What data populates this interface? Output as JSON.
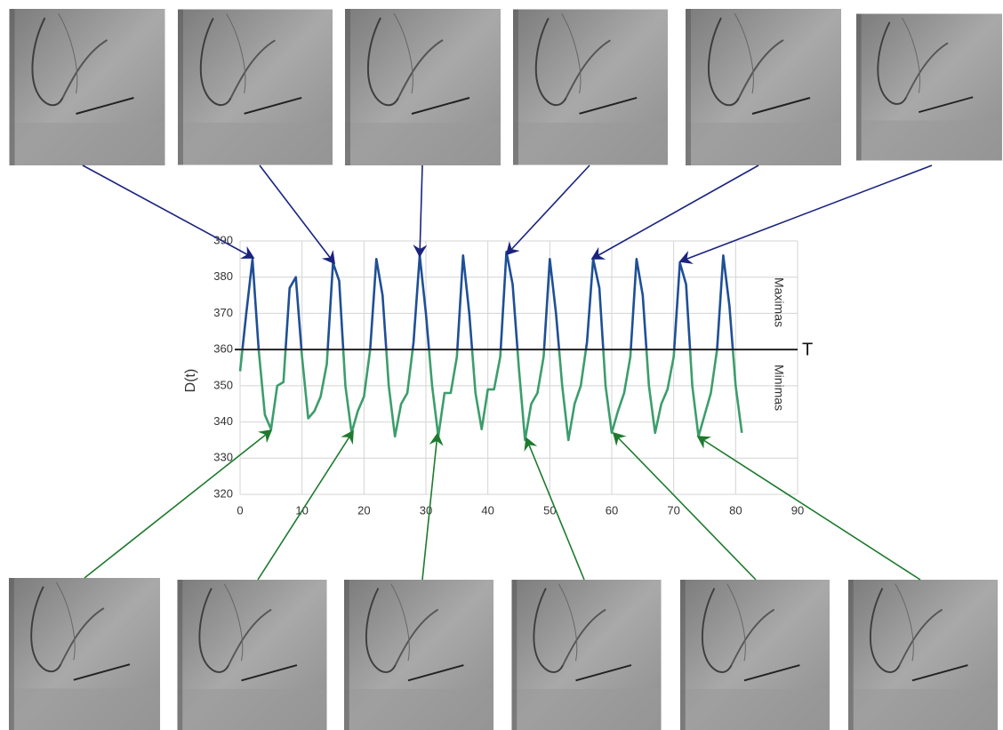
{
  "chart_data": {
    "type": "line",
    "y_label": "D(t)",
    "upper_label": "Maximas",
    "lower_label": "Minimas",
    "threshold": 360,
    "threshold_label": "T",
    "color_above": "#1f4f96",
    "color_below": "#3c9d6c",
    "threshold_color": "#222222",
    "grid": true,
    "x": [
      0,
      1,
      2,
      3,
      4,
      5,
      6,
      7,
      8,
      9,
      10,
      11,
      12,
      13,
      14,
      15,
      16,
      17,
      18,
      19,
      20,
      21,
      22,
      23,
      24,
      25,
      26,
      27,
      28,
      29,
      30,
      31,
      32,
      33,
      34,
      35,
      36,
      37,
      38,
      39,
      40,
      41,
      42,
      43,
      44,
      45,
      46,
      47,
      48,
      49,
      50,
      51,
      52,
      53,
      54,
      55,
      56,
      57,
      58,
      59,
      60,
      61,
      62,
      63,
      64,
      65,
      66,
      67,
      68,
      69,
      70,
      71,
      72,
      73,
      74,
      75,
      76,
      77,
      78,
      79,
      80,
      81
    ],
    "values": [
      354,
      370,
      385,
      360,
      342,
      338,
      350,
      351,
      377,
      380,
      358,
      341,
      343,
      347,
      356,
      384,
      379,
      350,
      337,
      343,
      347,
      360,
      385,
      375,
      350,
      336,
      345,
      348,
      362,
      386,
      370,
      350,
      336,
      348,
      348,
      358,
      386,
      370,
      348,
      338,
      349,
      349,
      358,
      387,
      378,
      355,
      335,
      345,
      348,
      358,
      385,
      370,
      350,
      335,
      345,
      350,
      362,
      385,
      377,
      350,
      337,
      343,
      348,
      358,
      385,
      375,
      350,
      337,
      345,
      349,
      358,
      384,
      378,
      350,
      336,
      342,
      348,
      360,
      386,
      372,
      350,
      337
    ],
    "xlim": [
      0,
      90
    ],
    "xticks": [
      0,
      10,
      20,
      30,
      40,
      50,
      60,
      70,
      80,
      90
    ],
    "ylim": [
      320,
      390
    ],
    "yticks": [
      320,
      330,
      340,
      350,
      360,
      370,
      380,
      390
    ]
  }
}
